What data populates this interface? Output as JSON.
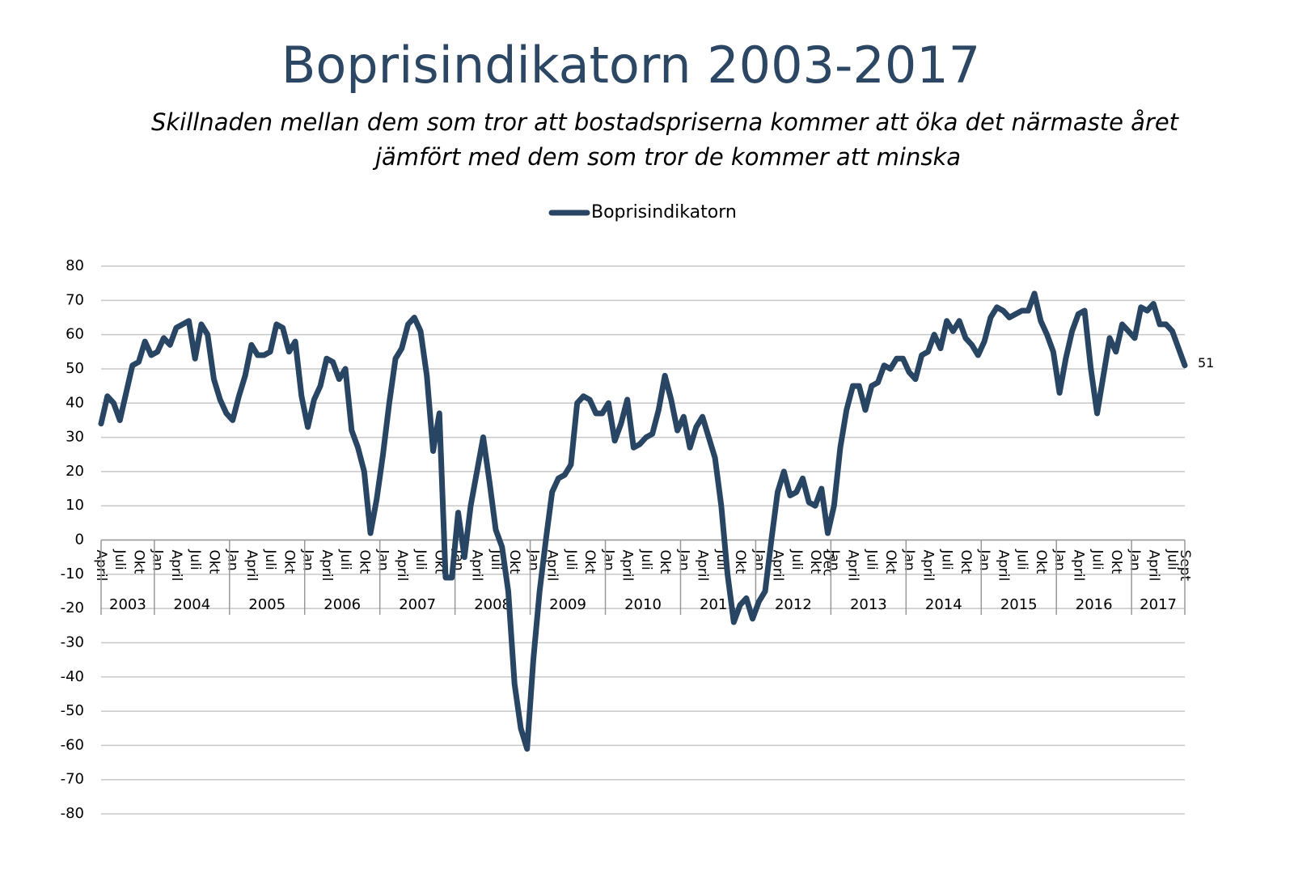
{
  "chart_data": {
    "type": "line",
    "title": "Boprisindikatorn 2003-2017",
    "subtitle": [
      "Skillnaden mellan dem som tror att bostadspriserna kommer att öka det närmaste året",
      "jämfört med dem som tror de kommer att minska"
    ],
    "categories": [
      "April",
      null,
      null,
      "Juli",
      null,
      null,
      "Okt",
      null,
      null,
      "Jan",
      null,
      null,
      "April",
      null,
      null,
      "Juli",
      null,
      null,
      "Okt",
      null,
      null,
      "Jan",
      null,
      null,
      "April",
      null,
      null,
      "Juli",
      null,
      null,
      "Okt",
      null,
      null,
      "Jan",
      null,
      null,
      "April",
      null,
      null,
      "Juli",
      null,
      null,
      "Okt",
      null,
      null,
      "Jan",
      null,
      null,
      "April",
      null,
      null,
      "Juli",
      null,
      null,
      "Okt",
      null,
      null,
      "Jan",
      null,
      null,
      "April",
      null,
      null,
      "Juli",
      null,
      null,
      "Okt",
      null,
      null,
      "Jan",
      null,
      null,
      "April",
      null,
      null,
      "Juli",
      null,
      null,
      "Okt",
      null,
      null,
      "Jan",
      null,
      null,
      "April",
      null,
      null,
      "Juli",
      null,
      null,
      "Okt",
      null,
      null,
      "Jan",
      null,
      null,
      "April",
      null,
      null,
      "Juli",
      null,
      null,
      "Okt",
      null,
      null,
      "Jan",
      null,
      null,
      "April",
      null,
      null,
      "Juli",
      null,
      null,
      "Okt",
      null,
      "Dec",
      "Jan",
      null,
      null,
      "April",
      null,
      null,
      "Juli",
      null,
      null,
      "Okt",
      null,
      null,
      "Jan",
      null,
      null,
      "April",
      null,
      null,
      "Juli",
      null,
      null,
      "Okt",
      null,
      null,
      "Jan",
      null,
      null,
      "April",
      null,
      null,
      "Juli",
      null,
      null,
      "Okt",
      null,
      null,
      "Jan",
      null,
      null,
      "April",
      null,
      null,
      "Juli",
      null,
      null,
      "Okt",
      null,
      null,
      "Jan",
      null,
      null,
      "April",
      null,
      null,
      "Juli",
      null,
      "Sept"
    ],
    "years": [
      "2003",
      "2004",
      "2005",
      "2006",
      "2007",
      "2008",
      "2009",
      "2010",
      "2011",
      "2012",
      "2013",
      "2014",
      "2015",
      "2016",
      "2017"
    ],
    "series": [
      {
        "name": "Boprisindikatorn",
        "color": "#284563",
        "values": [
          34,
          42,
          40,
          35,
          43,
          51,
          52,
          58,
          54,
          55,
          59,
          57,
          62,
          63,
          64,
          53,
          63,
          60,
          47,
          41,
          37,
          35,
          42,
          48,
          57,
          54,
          54,
          55,
          63,
          62,
          55,
          58,
          42,
          33,
          41,
          45,
          53,
          52,
          47,
          50,
          32,
          27,
          20,
          2,
          12,
          25,
          40,
          53,
          56,
          63,
          65,
          61,
          48,
          26,
          37,
          -11,
          -11,
          8,
          -5,
          10,
          20,
          30,
          17,
          3,
          -2,
          -15,
          -42,
          -55,
          -61,
          -35,
          -15,
          0,
          14,
          18,
          19,
          22,
          40,
          42,
          41,
          37,
          37,
          40,
          29,
          34,
          41,
          27,
          28,
          30,
          31,
          38,
          48,
          41,
          32,
          36,
          27,
          33,
          36,
          30,
          24,
          10,
          -10,
          -24,
          -19,
          -17,
          -23,
          -18,
          -15,
          0,
          14,
          20,
          13,
          14,
          18,
          11,
          10,
          15,
          2,
          10,
          27,
          38,
          45,
          45,
          38,
          45,
          46,
          51,
          50,
          53,
          53,
          49,
          47,
          54,
          55,
          60,
          56,
          64,
          61,
          64,
          59,
          57,
          54,
          58,
          65,
          68,
          67,
          65,
          66,
          67,
          67,
          72,
          64,
          60,
          55,
          43,
          53,
          61,
          66,
          67,
          50,
          37,
          48,
          59,
          55,
          63,
          61,
          59,
          68,
          67,
          69,
          63,
          63,
          61,
          56,
          51
        ]
      }
    ],
    "ylim": [
      -80,
      80
    ],
    "yticks": [
      -80,
      -70,
      -60,
      -50,
      -40,
      -30,
      -20,
      -10,
      0,
      10,
      20,
      30,
      40,
      50,
      60,
      70,
      80
    ],
    "grid": true,
    "legend": "top"
  }
}
